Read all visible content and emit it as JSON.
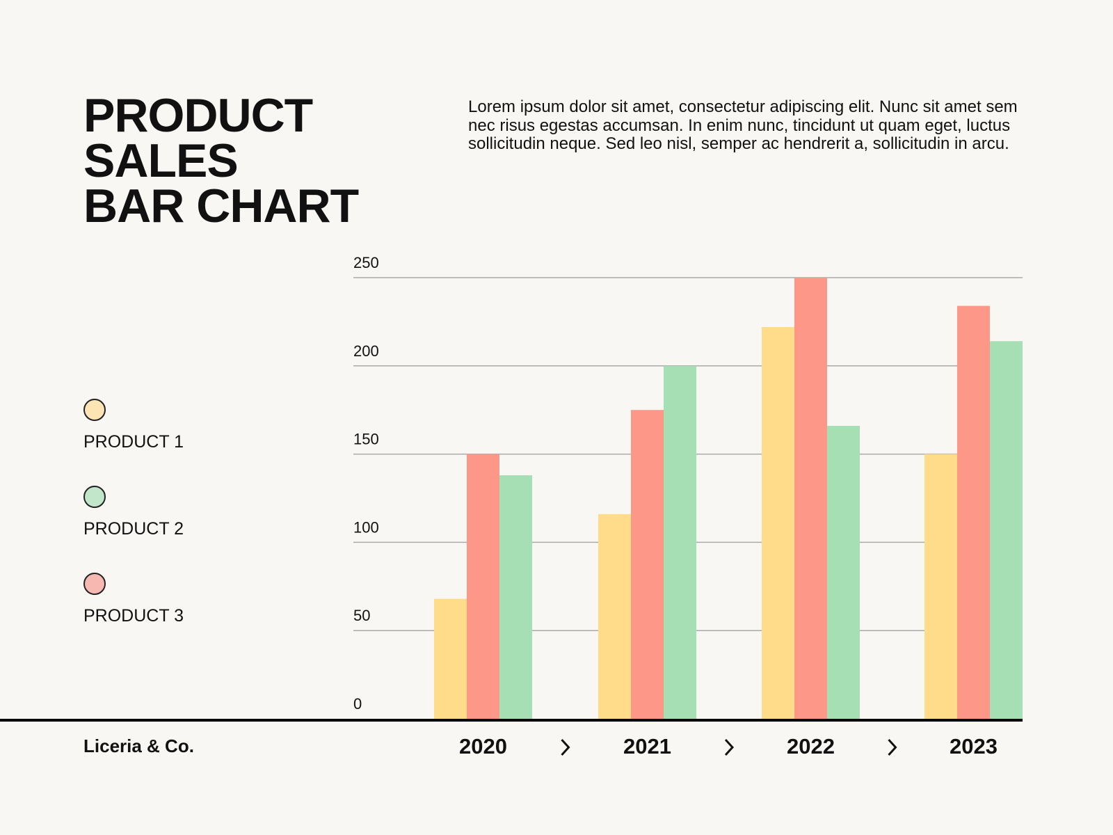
{
  "title_lines": [
    "PRODUCT",
    "SALES",
    "BAR CHART"
  ],
  "description": "Lorem ipsum dolor sit amet, consectetur adipiscing elit. Nunc sit amet sem nec risus egestas accumsan. In enim nunc, tincidunt ut quam eget, luctus sollicitudin neque. Sed leo nisl, semper ac hendrerit a, sollicitudin in arcu.",
  "brand": "Liceria & Co.",
  "legend": [
    {
      "label": "PRODUCT 1",
      "color": "#fde4b5"
    },
    {
      "label": "PRODUCT 2",
      "color": "#c2e6c9"
    },
    {
      "label": "PRODUCT 3",
      "color": "#f8b8b2"
    }
  ],
  "chart_data": {
    "type": "bar",
    "title": "PRODUCT SALES BAR CHART",
    "categories": [
      "2020",
      "2021",
      "2022",
      "2023"
    ],
    "category_separator_icon": "chevron-right-icon",
    "series": [
      {
        "name": "PRODUCT 1",
        "color": "#fedc8a",
        "values": [
          68,
          116,
          222,
          150
        ]
      },
      {
        "name": "PRODUCT 3",
        "color": "#fd9787",
        "values": [
          150,
          175,
          250,
          234
        ]
      },
      {
        "name": "PRODUCT 2",
        "color": "#a7dfb4",
        "values": [
          138,
          200,
          166,
          214
        ]
      }
    ],
    "yticks": [
      0,
      50,
      100,
      150,
      200,
      250
    ],
    "ylim": [
      0,
      250
    ],
    "grid": true,
    "legend_placement": "left"
  }
}
